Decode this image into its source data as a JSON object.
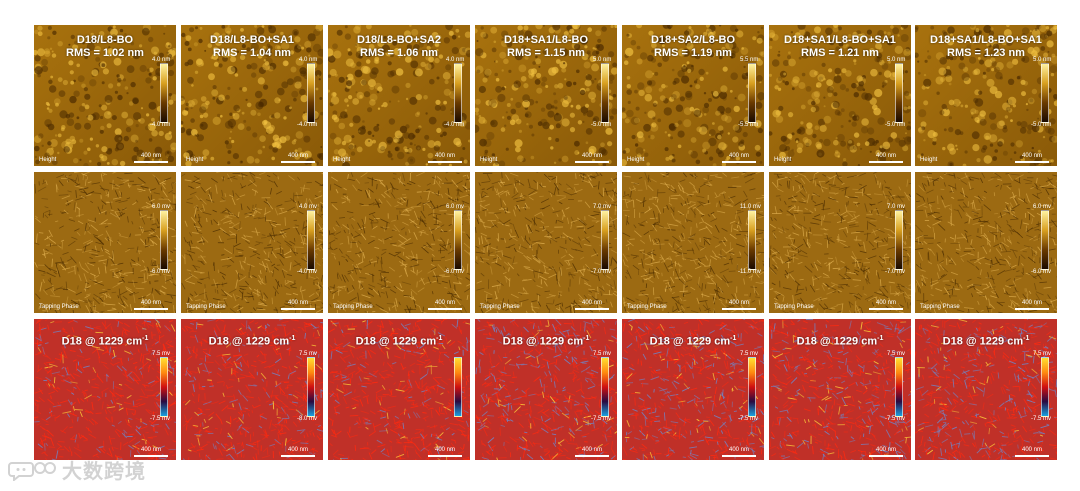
{
  "figure": {
    "columns": [
      {
        "title": "D18/L8-BO",
        "rms": "RMS = 1.02 nm"
      },
      {
        "title": "D18/L8-BO+SA1",
        "rms": "RMS = 1.04 nm"
      },
      {
        "title": "D18/L8-BO+SA2",
        "rms": "RMS = 1.06 nm"
      },
      {
        "title": "D18+SA1/L8-BO",
        "rms": "RMS = 1.15 nm"
      },
      {
        "title": "D18+SA2/L8-BO",
        "rms": "RMS = 1.19 nm"
      },
      {
        "title": "D18+SA1/L8-BO+SA1",
        "rms": "RMS = 1.21 nm"
      },
      {
        "title": "D18+SA1/L8-BO+SA1",
        "rms": "RMS = 1.23 nm"
      }
    ],
    "scale_bar_label": "400 nm",
    "rows": {
      "height": {
        "channel_label": "Height",
        "colorbar": [
          {
            "top": "4.0 nm",
            "bottom": "-4.0 nm"
          },
          {
            "top": "4.0 nm",
            "bottom": "-4.0 nm"
          },
          {
            "top": "4.0 nm",
            "bottom": "-4.0 nm"
          },
          {
            "top": "5.0 nm",
            "bottom": "-5.0 nm"
          },
          {
            "top": "5.5 nm",
            "bottom": "-5.5 nm"
          },
          {
            "top": "5.0 nm",
            "bottom": "-5.0 nm"
          },
          {
            "top": "5.0 nm",
            "bottom": "-5.0 nm"
          }
        ]
      },
      "phase": {
        "channel_label": "Tapping Phase",
        "colorbar": [
          {
            "top": "6.0 mv",
            "bottom": "-6.0 mv"
          },
          {
            "top": "4.0 mv",
            "bottom": "-4.0 mv"
          },
          {
            "top": "6.0 mv",
            "bottom": "-6.0 mv"
          },
          {
            "top": "7.0 mv",
            "bottom": "-7.0 mv"
          },
          {
            "top": "11.0 mv",
            "bottom": "-11.0 mv"
          },
          {
            "top": "7.0 mv",
            "bottom": "-7.0 mv"
          },
          {
            "top": "6.0 mv",
            "bottom": "-6.0 mv"
          }
        ]
      },
      "ir": {
        "title": "D18 @ 1229 cm",
        "title_superscript": "-1",
        "colorbar": [
          {
            "top": "7.5 mv",
            "bottom": "-7.5 mv"
          },
          {
            "top": "7.5 mv",
            "bottom": "-8.0 mv"
          },
          {
            "top": "",
            "bottom": ""
          },
          {
            "top": "7.5 mv",
            "bottom": "-7.5 mv"
          },
          {
            "top": "7.5 mv",
            "bottom": "-7.5 mv"
          },
          {
            "top": "7.5 mv",
            "bottom": "-7.5 mv"
          },
          {
            "top": "7.5 mv",
            "bottom": "-7.5 mv"
          }
        ]
      }
    }
  },
  "watermark": {
    "text": "大数跨境",
    "icon": "chat-bubbles-logo-icon"
  },
  "colors": {
    "height_dark": "#4a2a00",
    "height_light": "#f0c040",
    "phase_base": "#9c6a12",
    "ir_base": "#c03028",
    "ir_streak_red": "#ff2a10",
    "ir_streak_blue": "#6f86c8"
  }
}
